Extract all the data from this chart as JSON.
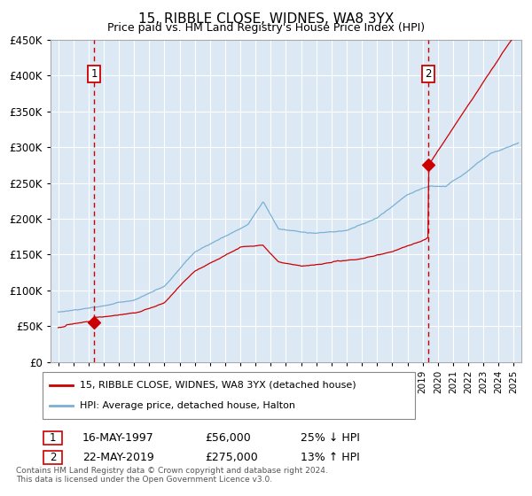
{
  "title": "15, RIBBLE CLOSE, WIDNES, WA8 3YX",
  "subtitle": "Price paid vs. HM Land Registry's House Price Index (HPI)",
  "legend_line1": "15, RIBBLE CLOSE, WIDNES, WA8 3YX (detached house)",
  "legend_line2": "HPI: Average price, detached house, Halton",
  "sale1_date": "16-MAY-1997",
  "sale1_price": 56000,
  "sale1_pct": "25% ↓ HPI",
  "sale1_year": 1997.37,
  "sale2_date": "22-MAY-2019",
  "sale2_price": 275000,
  "sale2_pct": "13% ↑ HPI",
  "sale2_year": 2019.38,
  "ylim": [
    0,
    450000
  ],
  "xlim": [
    1994.5,
    2025.5
  ],
  "bg_color": "#dce9f5",
  "grid_color": "#ffffff",
  "red_line_color": "#cc0000",
  "blue_line_color": "#7ab0d4",
  "vline_color": "#cc0000",
  "footnote": "Contains HM Land Registry data © Crown copyright and database right 2024.\nThis data is licensed under the Open Government Licence v3.0."
}
